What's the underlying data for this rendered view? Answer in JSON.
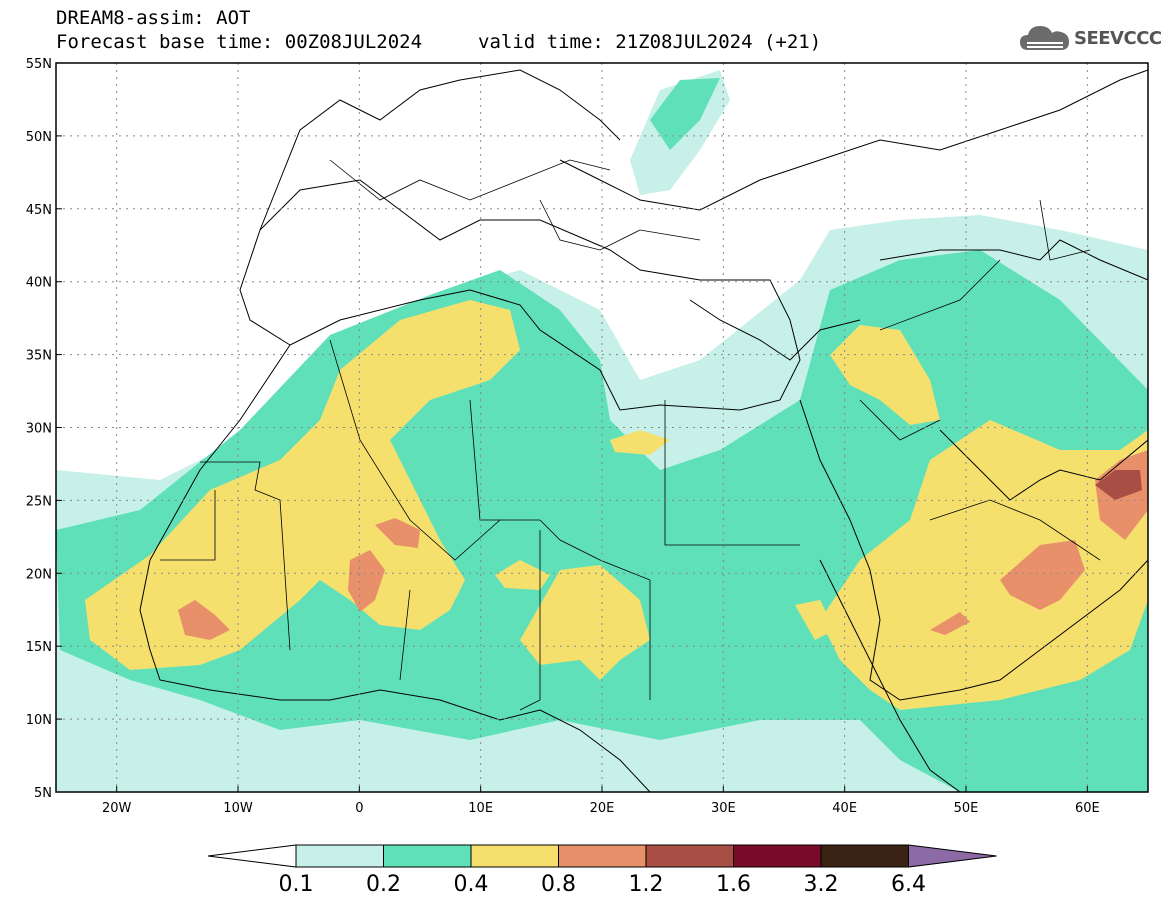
{
  "header": {
    "title": "DREAM8-assim: AOT",
    "base_time": "Forecast base time: 00Z08JUL2024",
    "valid_time": "valid time: 21Z08JUL2024 (+21)",
    "logo_text": "SEEVCCC",
    "logo_icon": "cloud-logo-icon"
  },
  "map": {
    "lat_range": [
      5,
      55
    ],
    "lon_range": [
      -25,
      65
    ],
    "lat_ticks": [
      "5N",
      "10N",
      "15N",
      "20N",
      "25N",
      "30N",
      "35N",
      "40N",
      "45N",
      "50N",
      "55N"
    ],
    "lon_ticks": [
      "20W",
      "10W",
      "0",
      "10E",
      "20E",
      "30E",
      "40E",
      "50E",
      "60E"
    ],
    "lat_values": [
      5,
      10,
      15,
      20,
      25,
      30,
      35,
      40,
      45,
      50,
      55
    ],
    "lon_values": [
      -20,
      -10,
      0,
      10,
      20,
      30,
      40,
      50,
      60
    ],
    "gridlines": true
  },
  "colorbar": {
    "labels": [
      "0.1",
      "0.2",
      "0.4",
      "0.8",
      "1.2",
      "1.6",
      "3.2",
      "6.4"
    ],
    "colors": [
      "#c6f0e8",
      "#5fe0b8",
      "#f5e06e",
      "#e8906a",
      "#a84e45",
      "#7a0a2a",
      "#3a2214",
      "#8b6aa6"
    ]
  }
}
